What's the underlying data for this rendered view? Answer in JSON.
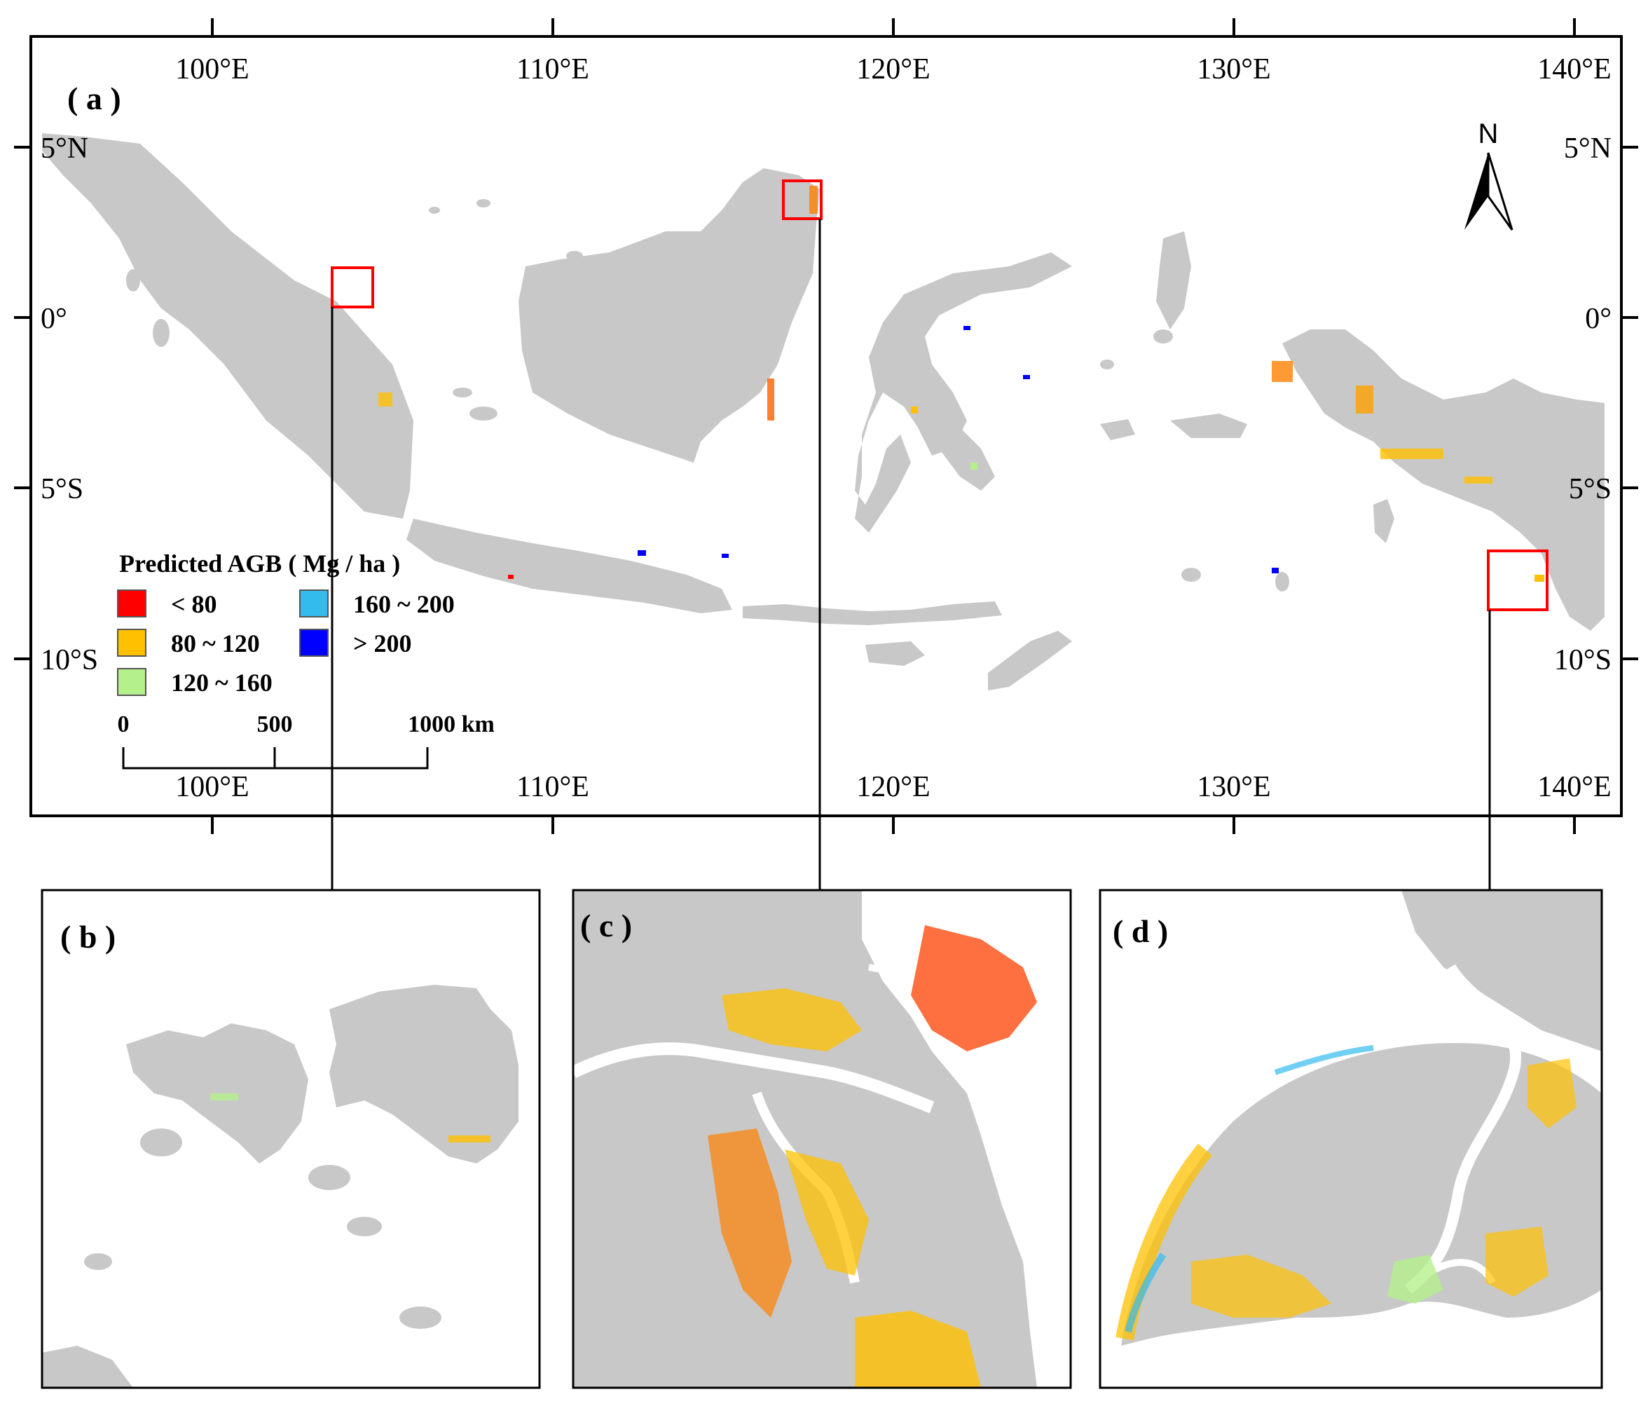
{
  "panels": {
    "a": "( a )",
    "b": "( b )",
    "c": "( c )",
    "d": "( d )"
  },
  "axes": {
    "lon_labels": [
      "100°E",
      "110°E",
      "120°E",
      "130°E",
      "140°E"
    ],
    "lat_labels": [
      "5°N",
      "0°",
      "5°S",
      "10°S"
    ]
  },
  "legend": {
    "title": "Predicted AGB ( Mg / ha )",
    "items": [
      {
        "label": "< 80",
        "color": "#ff0000"
      },
      {
        "label": "80 ~ 120",
        "color": "#ffc000"
      },
      {
        "label": "120 ~ 160",
        "color": "#b4f08c"
      },
      {
        "label": "160 ~ 200",
        "color": "#33bbee"
      },
      {
        "label": "> 200",
        "color": "#0000ff"
      }
    ]
  },
  "scale_bar": {
    "labels": [
      "0",
      "500",
      "1000 km"
    ]
  },
  "north_arrow": {
    "label": "N"
  },
  "colors": {
    "land": "#c8c8c8",
    "inset_box": "#ff0000"
  }
}
